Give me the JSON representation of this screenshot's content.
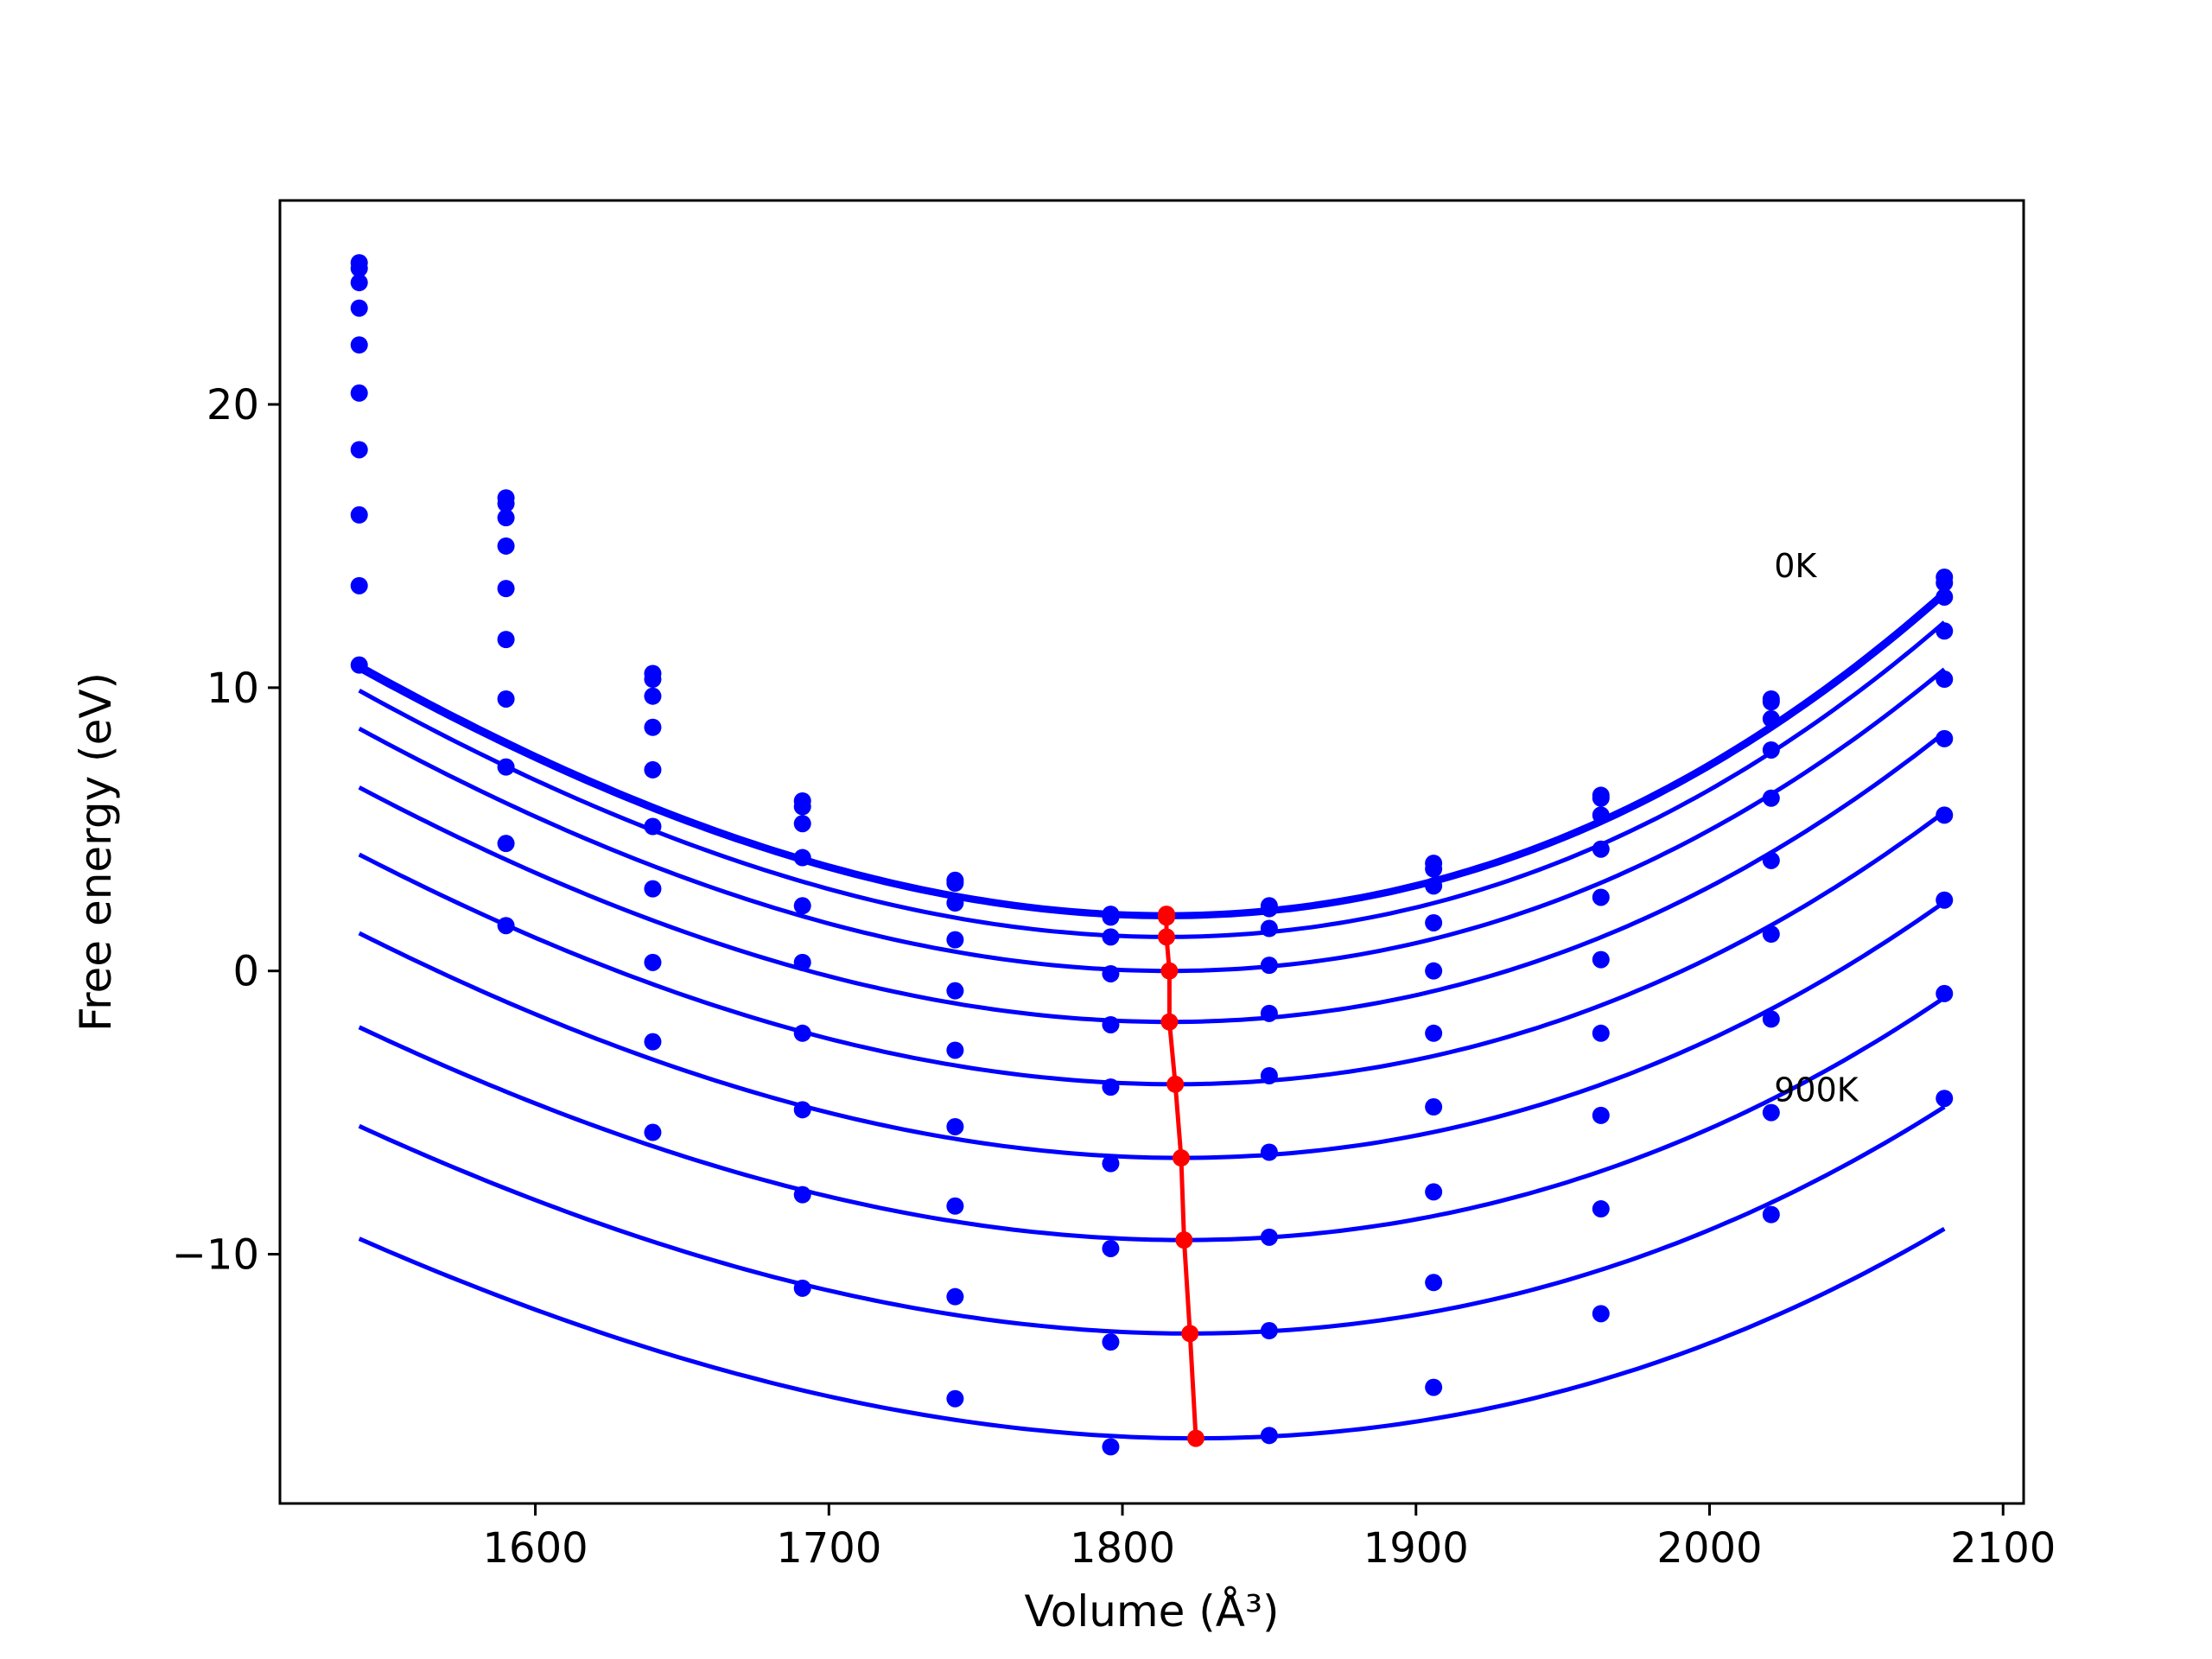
{
  "chart_data": {
    "type": "line",
    "xlabel": "Volume (Å³)",
    "ylabel": "Free energy (eV)",
    "xlim": [
      1513,
      2107
    ],
    "ylim": [
      -18.8,
      27.2
    ],
    "xticks": [
      1600,
      1700,
      1800,
      1900,
      2000,
      2100
    ],
    "yticks": [
      -10,
      0,
      10,
      20
    ],
    "x_tick_labels": [
      "1600",
      "1700",
      "1800",
      "1900",
      "2000",
      "2100"
    ],
    "y_tick_labels": [
      "−10",
      "0",
      "10",
      "20"
    ],
    "grid": false,
    "legend": "none",
    "colors": {
      "series": "#0000ff",
      "minimum": "#ff0000"
    },
    "annotations": [
      {
        "text": "0K",
        "x": 2022,
        "y": 13.9
      },
      {
        "text": "900K",
        "x": 2022,
        "y": -4.6
      }
    ],
    "volumes": [
      1540,
      1590,
      1640,
      1691,
      1743,
      1796,
      1850,
      1906,
      1963,
      2021,
      2080
    ],
    "series": [
      {
        "fit": {
          "E0": 2.0,
          "V0": 1815,
          "a": 0.00014,
          "b": 8.5e-08
        },
        "points": [
          25.0,
          16.7,
          10.5,
          6.0,
          3.2,
          2.0,
          2.3,
          3.8,
          6.2,
          9.6,
          13.9
        ]
      },
      {
        "fit": {
          "E0": 1.9,
          "V0": 1815,
          "a": 0.000139,
          "b": 8.5e-08
        },
        "points": [
          24.8,
          16.5,
          10.3,
          5.8,
          3.1,
          1.9,
          2.2,
          3.6,
          6.1,
          9.5,
          13.7
        ]
      },
      {
        "fit": {
          "E0": 1.2,
          "V0": 1815,
          "a": 0.000137,
          "b": 8e-08
        },
        "points": [
          24.3,
          16.0,
          9.7,
          5.2,
          2.4,
          1.2,
          1.5,
          3.0,
          5.5,
          8.9,
          13.2
        ]
      },
      {
        "fit": {
          "E0": 0.0,
          "V0": 1816,
          "a": 0.000133,
          "b": 7.5e-08
        },
        "points": [
          23.4,
          15.0,
          8.6,
          4.0,
          1.1,
          -0.1,
          0.2,
          1.7,
          4.3,
          7.8,
          12.0
        ]
      },
      {
        "fit": {
          "E0": -1.8,
          "V0": 1816,
          "a": 0.000128,
          "b": 7e-08
        },
        "points": [
          22.1,
          13.5,
          7.1,
          2.3,
          -0.7,
          -1.9,
          -1.5,
          0.0,
          2.6,
          6.1,
          10.3
        ]
      },
      {
        "fit": {
          "E0": -4.0,
          "V0": 1818,
          "a": 0.000123,
          "b": 6.5e-08
        },
        "points": [
          20.4,
          11.7,
          5.1,
          0.3,
          -2.8,
          -4.1,
          -3.7,
          -2.2,
          0.4,
          3.9,
          8.2
        ]
      },
      {
        "fit": {
          "E0": -6.6,
          "V0": 1820,
          "a": 0.000118,
          "b": 6e-08
        },
        "points": [
          18.4,
          9.6,
          2.9,
          -2.2,
          -5.5,
          -6.8,
          -6.4,
          -4.8,
          -2.2,
          1.3,
          5.5
        ]
      },
      {
        "fit": {
          "E0": -9.5,
          "V0": 1821,
          "a": 0.000112,
          "b": 6e-08
        },
        "points": [
          16.1,
          7.2,
          0.3,
          -4.9,
          -8.3,
          -9.8,
          -9.4,
          -7.8,
          -5.1,
          -1.7,
          2.5
        ]
      },
      {
        "fit": {
          "E0": -12.8,
          "V0": 1823,
          "a": 0.000107,
          "b": 5.5e-08
        },
        "points": [
          13.6,
          4.5,
          -2.5,
          -7.9,
          -11.5,
          -13.1,
          -12.7,
          -11.0,
          -8.4,
          -5.0,
          -0.8
        ]
      },
      {
        "fit": {
          "E0": -16.5,
          "V0": 1825,
          "a": 0.000101,
          "b": 5e-08
        },
        "points": [
          10.8,
          1.6,
          -5.7,
          -11.2,
          -15.1,
          -16.8,
          -16.4,
          -14.7,
          -12.1,
          -8.6,
          -4.5
        ]
      }
    ],
    "minimum_curve": {
      "x": [
        1815,
        1815,
        1815,
        1816,
        1816,
        1818,
        1820,
        1821,
        1823,
        1825
      ],
      "y": [
        2.0,
        1.9,
        1.2,
        0.0,
        -1.8,
        -4.0,
        -6.6,
        -9.5,
        -12.8,
        -16.5
      ]
    }
  }
}
